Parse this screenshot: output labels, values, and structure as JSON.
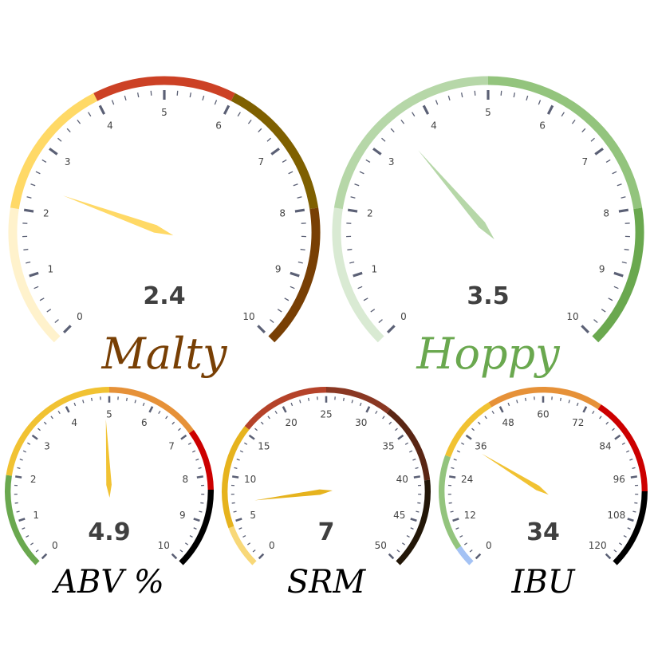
{
  "chart_data": [
    {
      "type": "gauge",
      "title": "Malty",
      "title_color": "#783F04",
      "min": 0,
      "max": 10,
      "value": 2.4,
      "value_label": "2.4",
      "major_ticks": [
        "0",
        "1",
        "2",
        "3",
        "4",
        "5",
        "6",
        "7",
        "8",
        "9",
        "10"
      ],
      "minor_per_major": 5,
      "needle_color": "#FFD966",
      "bands": [
        {
          "from": 0,
          "to": 2,
          "color": "#FFF2CC"
        },
        {
          "from": 2,
          "to": 4,
          "color": "#FFD966"
        },
        {
          "from": 4,
          "to": 6,
          "color": "#CC4125"
        },
        {
          "from": 6,
          "to": 8,
          "color": "#7F6000"
        },
        {
          "from": 8,
          "to": 10,
          "color": "#783F04"
        }
      ]
    },
    {
      "type": "gauge",
      "title": "Hoppy",
      "title_color": "#6AA84F",
      "min": 0,
      "max": 10,
      "value": 3.5,
      "value_label": "3.5",
      "major_ticks": [
        "0",
        "1",
        "2",
        "3",
        "4",
        "5",
        "6",
        "7",
        "8",
        "9",
        "10"
      ],
      "minor_per_major": 5,
      "needle_color": "#B6D7A8",
      "bands": [
        {
          "from": 0,
          "to": 2,
          "color": "#D9EAD3"
        },
        {
          "from": 2,
          "to": 5,
          "color": "#B6D7A8"
        },
        {
          "from": 5,
          "to": 8,
          "color": "#93C47D"
        },
        {
          "from": 8,
          "to": 10,
          "color": "#6AA84F"
        }
      ]
    },
    {
      "type": "gauge",
      "title": "ABV %",
      "title_color": "#000000",
      "min": 0,
      "max": 10,
      "value": 4.9,
      "value_label": "4.9",
      "major_ticks": [
        "0",
        "1",
        "2",
        "3",
        "4",
        "5",
        "6",
        "7",
        "8",
        "9",
        "10"
      ],
      "minor_per_major": 5,
      "needle_color": "#F1C232",
      "bands": [
        {
          "from": 0,
          "to": 2,
          "color": "#6AA84F"
        },
        {
          "from": 2,
          "to": 5,
          "color": "#F1C232"
        },
        {
          "from": 5,
          "to": 7,
          "color": "#E69138"
        },
        {
          "from": 7,
          "to": 8.3,
          "color": "#CC0000"
        },
        {
          "from": 8.3,
          "to": 10,
          "color": "#000000"
        }
      ]
    },
    {
      "type": "gauge",
      "title": "SRM",
      "title_color": "#000000",
      "min": 0,
      "max": 50,
      "value": 7,
      "value_label": "7",
      "major_ticks": [
        "0",
        "5",
        "10",
        "15",
        "20",
        "25",
        "30",
        "35",
        "40",
        "45",
        "50"
      ],
      "minor_per_major": 5,
      "needle_color": "#E6B31E",
      "bands": [
        {
          "from": 0,
          "to": 4.5,
          "color": "#F8D878"
        },
        {
          "from": 4.5,
          "to": 15.5,
          "color": "#E6B31E"
        },
        {
          "from": 15.5,
          "to": 25,
          "color": "#B5432A"
        },
        {
          "from": 25,
          "to": 32,
          "color": "#8A3823"
        },
        {
          "from": 32,
          "to": 40.5,
          "color": "#5A2614"
        },
        {
          "from": 40.5,
          "to": 50,
          "color": "#231708"
        }
      ]
    },
    {
      "type": "gauge",
      "title": "IBU",
      "title_color": "#000000",
      "min": 0,
      "max": 120,
      "value": 34,
      "value_label": "34",
      "major_ticks": [
        "0",
        "12",
        "24",
        "36",
        "48",
        "60",
        "72",
        "84",
        "96",
        "108",
        "120"
      ],
      "minor_per_major": 5,
      "needle_color": "#F1C232",
      "bands": [
        {
          "from": 0,
          "to": 5,
          "color": "#A4C2F4"
        },
        {
          "from": 5,
          "to": 29,
          "color": "#93C47D"
        },
        {
          "from": 29,
          "to": 46,
          "color": "#F1C232"
        },
        {
          "from": 46,
          "to": 75,
          "color": "#E69138"
        },
        {
          "from": 75,
          "to": 100,
          "color": "#CC0000"
        },
        {
          "from": 100,
          "to": 120,
          "color": "#000000"
        }
      ]
    }
  ]
}
